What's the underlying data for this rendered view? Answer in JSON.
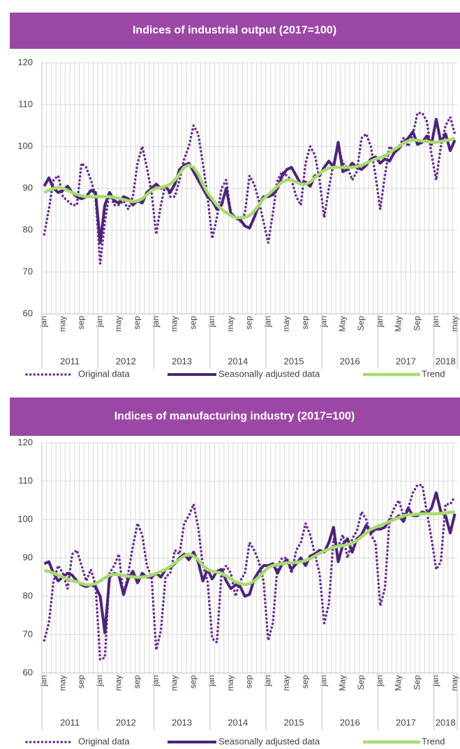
{
  "chart_data": [
    {
      "type": "line",
      "title": "Indices of industrial output (2017=100)",
      "categories": [
        "jan",
        null,
        null,
        null,
        "may",
        null,
        null,
        null,
        "sep",
        null,
        null,
        null,
        "jan",
        null,
        null,
        null,
        "may",
        null,
        null,
        null,
        "sep",
        null,
        null,
        null,
        "jan",
        null,
        null,
        null,
        "may",
        null,
        null,
        null,
        "sep",
        null,
        null,
        null,
        "jan",
        null,
        null,
        null,
        "may",
        null,
        null,
        null,
        "sep",
        null,
        null,
        null,
        "jan",
        null,
        null,
        null,
        "may",
        null,
        null,
        null,
        "sep",
        null,
        null,
        null,
        "jan",
        null,
        null,
        null,
        "May",
        null,
        null,
        null,
        "Sep",
        null,
        null,
        null,
        "jan",
        null,
        null,
        null,
        "May",
        null,
        null,
        null,
        "Sep",
        null,
        null,
        null,
        "jan",
        null,
        null,
        null,
        "may"
      ],
      "x_groups": [
        "2011",
        "2012",
        "2013",
        "2014",
        "2015",
        "2016",
        "2017",
        "2018"
      ],
      "ylim": [
        60,
        120
      ],
      "yticks": [
        60,
        70,
        80,
        90,
        100,
        110,
        120
      ],
      "grid": true,
      "series": [
        {
          "name": "Original data",
          "color": "#6a2d8f",
          "style": "dotted",
          "values": [
            79,
            85,
            92,
            93,
            88,
            87,
            86,
            86,
            96,
            95,
            92,
            88,
            72,
            82,
            89,
            86,
            86,
            87,
            85,
            88,
            96,
            100,
            95,
            89,
            79,
            86,
            91,
            88,
            88,
            92,
            97,
            100,
            105,
            103,
            96,
            88,
            78,
            83,
            90,
            92,
            84,
            83,
            82,
            84,
            93,
            91,
            87,
            82,
            77,
            84,
            92,
            94,
            93,
            92,
            88,
            86,
            96,
            100,
            98,
            92,
            83,
            90,
            96,
            100,
            96,
            95,
            92,
            94,
            102,
            103,
            100,
            93,
            85,
            93,
            100,
            99,
            100,
            102,
            100,
            103,
            108,
            108,
            106,
            98,
            92,
            100,
            105,
            107,
            103
          ]
        },
        {
          "name": "Seasonally adjusted data",
          "color": "#4b2578",
          "style": "solid",
          "values": [
            90.5,
            92.5,
            90,
            89,
            89.5,
            90.5,
            89,
            88,
            87.5,
            88,
            89.5,
            89,
            77,
            86,
            89,
            87,
            86.5,
            88,
            87.5,
            86,
            87,
            86.5,
            89,
            90,
            91,
            90,
            90.5,
            89,
            91,
            94.5,
            95.5,
            96,
            94,
            92,
            90,
            88,
            87,
            85,
            86,
            90,
            84,
            83,
            82.5,
            81,
            80.5,
            83,
            86,
            88,
            88,
            88.5,
            90,
            93,
            94.5,
            95,
            93,
            91,
            91.5,
            90.5,
            93,
            93,
            95,
            96.5,
            95,
            101,
            94,
            94.5,
            96,
            95,
            94.5,
            95.5,
            97,
            97.5,
            96,
            97,
            96.5,
            98.5,
            99.5,
            101,
            102,
            103.5,
            100.5,
            101,
            102.5,
            100.5,
            106.5,
            101,
            103,
            99,
            101.5
          ]
        },
        {
          "name": "Trend",
          "color": "#a8dc6f",
          "style": "solid",
          "values": [
            89,
            89.5,
            90,
            90.2,
            90,
            89.5,
            89,
            88.5,
            88.2,
            88,
            88,
            88,
            88,
            88,
            88,
            87.8,
            87.6,
            87.3,
            87,
            86.8,
            87,
            87.5,
            88.5,
            89.5,
            90,
            90.2,
            90.5,
            91,
            92,
            93.5,
            95,
            95.5,
            95,
            93.5,
            91,
            89,
            87.5,
            86,
            85,
            84.2,
            83.5,
            83,
            83,
            83,
            83.5,
            84.5,
            86,
            87.5,
            88.5,
            89.5,
            90.5,
            91.5,
            92,
            92,
            91.5,
            91,
            91,
            91.5,
            92.5,
            93.5,
            94.3,
            94.8,
            95,
            95,
            95,
            95,
            95,
            95.2,
            95.5,
            96,
            96.5,
            97,
            97.3,
            97.8,
            98.5,
            99.3,
            100,
            100.8,
            101.3,
            101.5,
            101.5,
            101.3,
            101.2,
            101,
            101,
            101.2,
            101.4,
            101.6,
            102
          ]
        }
      ]
    },
    {
      "type": "line",
      "title": "Indices of manufacturing industry (2017=100)",
      "categories": [
        "jan",
        null,
        null,
        null,
        "may",
        null,
        null,
        null,
        "sep",
        null,
        null,
        null,
        "jan",
        null,
        null,
        null,
        "may",
        null,
        null,
        null,
        "sep",
        null,
        null,
        null,
        "jan",
        null,
        null,
        null,
        "may",
        null,
        null,
        null,
        "sep",
        null,
        null,
        null,
        "jan",
        null,
        null,
        null,
        "may",
        null,
        null,
        null,
        "sep",
        null,
        null,
        null,
        "jan",
        null,
        null,
        null,
        "may",
        null,
        null,
        null,
        "sep",
        null,
        null,
        null,
        "jan",
        null,
        null,
        null,
        "May",
        null,
        null,
        null,
        "Sep",
        null,
        null,
        null,
        "jan",
        null,
        null,
        null,
        "May",
        null,
        null,
        null,
        "Sep",
        null,
        null,
        null,
        "jan",
        null,
        null,
        null,
        "may"
      ],
      "x_groups": [
        "2011",
        "2012",
        "2013",
        "2014",
        "2015",
        "2016",
        "2017",
        "2018"
      ],
      "ylim": [
        60,
        120
      ],
      "yticks": [
        60,
        70,
        80,
        90,
        100,
        110,
        120
      ],
      "grid": true,
      "series": [
        {
          "name": "Original data",
          "color": "#6a2d8f",
          "style": "dotted",
          "values": [
            68.5,
            73,
            84,
            88,
            86,
            82,
            91,
            92,
            88,
            84,
            87,
            83,
            63.5,
            64,
            86,
            88,
            91,
            80,
            86,
            93,
            99,
            96,
            88,
            85,
            66,
            71,
            85,
            86,
            92,
            91,
            99,
            101,
            104,
            98,
            88,
            84,
            69,
            68,
            86,
            88,
            86,
            80,
            84,
            86,
            94,
            92,
            89,
            84,
            68.5,
            73,
            88,
            90,
            90,
            86,
            92,
            94,
            99,
            96,
            91,
            86,
            73,
            78,
            95,
            93,
            96,
            90,
            95,
            97,
            102,
            100,
            96,
            94,
            77.5,
            82,
            100,
            103,
            105,
            101,
            103,
            107,
            109,
            109,
            102,
            95,
            87,
            89,
            104,
            104,
            106
          ]
        },
        {
          "name": "Seasonally adjusted data",
          "color": "#4b2578",
          "style": "solid",
          "values": [
            88.5,
            89,
            86,
            84,
            85,
            86,
            85.5,
            84,
            83,
            82.5,
            83,
            82.5,
            80,
            70.5,
            85,
            86,
            85.5,
            80.5,
            84.5,
            86.5,
            83.5,
            86,
            85,
            85,
            86,
            85,
            87,
            87.5,
            88.5,
            90,
            91,
            89.5,
            91.5,
            89,
            84,
            87,
            84.5,
            86.5,
            87,
            84,
            82,
            83,
            82.5,
            80,
            80.5,
            84.5,
            86.5,
            88,
            88,
            88.5,
            86,
            88.5,
            89.5,
            87,
            88.5,
            90,
            88,
            90.5,
            91,
            92,
            91.5,
            94,
            98,
            89,
            93.5,
            95,
            91.5,
            95,
            96,
            98.5,
            96.5,
            97.5,
            97.5,
            98,
            100,
            100,
            101,
            99.5,
            103,
            101,
            101,
            102,
            101.5,
            103,
            107,
            102,
            101,
            96.5,
            101.5
          ]
        },
        {
          "name": "Trend",
          "color": "#a8dc6f",
          "style": "solid",
          "values": [
            86.7,
            86.5,
            86,
            85.5,
            85,
            84.5,
            84,
            83.8,
            83.3,
            83,
            83,
            83.3,
            84,
            84.8,
            85.5,
            85.7,
            85.6,
            85.4,
            85.2,
            85,
            85,
            85,
            85.2,
            85.5,
            86,
            86.5,
            87,
            87.8,
            88.7,
            89.6,
            90.5,
            91,
            90.5,
            89.5,
            88,
            87,
            86.5,
            86.3,
            86,
            85.3,
            84.5,
            83.8,
            83.3,
            83,
            83.3,
            84,
            85,
            86.3,
            87.5,
            88,
            88.3,
            88.5,
            88.7,
            88.8,
            88.8,
            89,
            89.3,
            89.8,
            90.5,
            91.2,
            91.8,
            92.3,
            92.8,
            93,
            93.2,
            93.5,
            93.8,
            94.5,
            95.5,
            96.5,
            97.5,
            98,
            98.5,
            99,
            99.5,
            100,
            100.5,
            101,
            101.2,
            101.3,
            101.4,
            101.5,
            101.5,
            101.5,
            101.5,
            101.6,
            101.7,
            101.9,
            102
          ]
        }
      ]
    }
  ]
}
